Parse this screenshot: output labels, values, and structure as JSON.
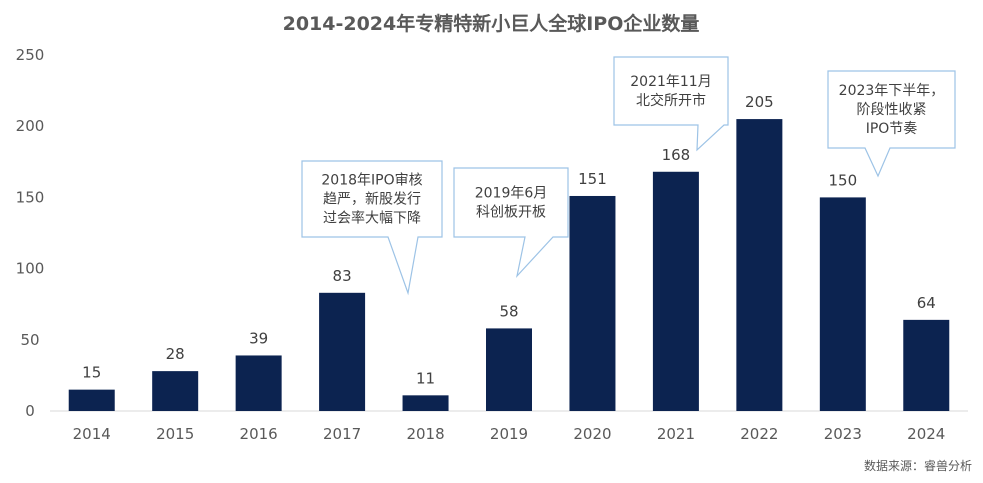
{
  "chart_data": {
    "type": "bar",
    "title": "2014-2024年专精特新小巨人全球IPO企业数量",
    "categories": [
      "2014",
      "2015",
      "2016",
      "2017",
      "2018",
      "2019",
      "2020",
      "2021",
      "2022",
      "2023",
      "2024"
    ],
    "values": [
      15,
      28,
      39,
      83,
      11,
      58,
      151,
      168,
      205,
      150,
      64
    ],
    "yticks": [
      "0",
      "50",
      "100",
      "150",
      "200",
      "250"
    ],
    "ylim": [
      0,
      250
    ],
    "grid": false,
    "legend": "none",
    "bar_color": "#0c2350",
    "callout_border_color": "#9dc3e6",
    "annotations": [
      {
        "category": "2018",
        "lines": [
          "2018年IPO审核",
          "趋严，新股发行",
          "过会率大幅下降"
        ]
      },
      {
        "category": "2019",
        "lines": [
          "2019年6月",
          "科创板开板"
        ]
      },
      {
        "category": "2021",
        "lines": [
          "2021年11月",
          "北交所开市"
        ]
      },
      {
        "category": "2023",
        "lines": [
          "2023年下半年，",
          "阶段性收紧",
          "IPO节奏"
        ]
      }
    ],
    "source": "数据来源：睿兽分析"
  }
}
